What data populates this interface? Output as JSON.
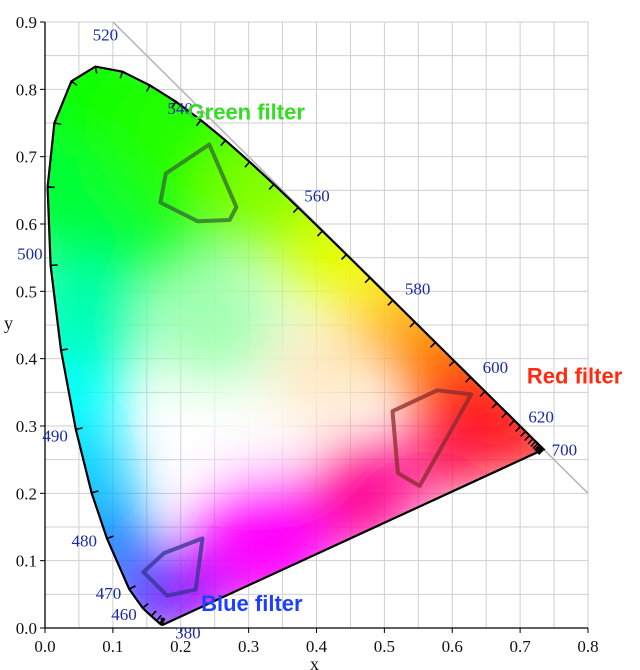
{
  "chart_data": {
    "type": "scatter",
    "xlabel": "x",
    "ylabel": "y",
    "xlim": [
      0,
      0.8
    ],
    "ylim": [
      0,
      0.9
    ],
    "xticks": [
      "0.0",
      "0.1",
      "0.2",
      "0.3",
      "0.4",
      "0.5",
      "0.6",
      "0.7",
      "0.8"
    ],
    "yticks": [
      "0.0",
      "0.1",
      "0.2",
      "0.3",
      "0.4",
      "0.5",
      "0.6",
      "0.7",
      "0.8",
      "0.9"
    ],
    "grid": true,
    "spectral_locus": [
      [
        0.1741,
        0.005
      ],
      [
        0.1738,
        0.0049
      ],
      [
        0.1733,
        0.0048
      ],
      [
        0.1726,
        0.0048
      ],
      [
        0.1714,
        0.0051
      ],
      [
        0.1689,
        0.0069
      ],
      [
        0.1644,
        0.0109
      ],
      [
        0.1566,
        0.0177
      ],
      [
        0.144,
        0.0297
      ],
      [
        0.1241,
        0.0578
      ],
      [
        0.0913,
        0.1327
      ],
      [
        0.0687,
        0.2007
      ],
      [
        0.0454,
        0.295
      ],
      [
        0.0235,
        0.4127
      ],
      [
        0.0082,
        0.5384
      ],
      [
        0.0039,
        0.6548
      ],
      [
        0.0139,
        0.7502
      ],
      [
        0.0389,
        0.812
      ],
      [
        0.0743,
        0.8338
      ],
      [
        0.1142,
        0.8262
      ],
      [
        0.1547,
        0.8059
      ],
      [
        0.1929,
        0.7816
      ],
      [
        0.2296,
        0.7543
      ],
      [
        0.2658,
        0.7243
      ],
      [
        0.3016,
        0.6923
      ],
      [
        0.3373,
        0.6589
      ],
      [
        0.3731,
        0.6245
      ],
      [
        0.4087,
        0.5896
      ],
      [
        0.4441,
        0.5547
      ],
      [
        0.4788,
        0.5202
      ],
      [
        0.5125,
        0.4866
      ],
      [
        0.5448,
        0.4544
      ],
      [
        0.5752,
        0.4242
      ],
      [
        0.6029,
        0.3965
      ],
      [
        0.627,
        0.3725
      ],
      [
        0.6482,
        0.3514
      ],
      [
        0.6658,
        0.334
      ],
      [
        0.6801,
        0.3197
      ],
      [
        0.6915,
        0.3083
      ],
      [
        0.7006,
        0.2993
      ],
      [
        0.7079,
        0.292
      ],
      [
        0.714,
        0.2859
      ],
      [
        0.719,
        0.2809
      ],
      [
        0.723,
        0.277
      ],
      [
        0.726,
        0.274
      ],
      [
        0.7283,
        0.2717
      ],
      [
        0.73,
        0.27
      ],
      [
        0.7311,
        0.2689
      ],
      [
        0.732,
        0.268
      ],
      [
        0.7327,
        0.2673
      ],
      [
        0.7334,
        0.2666
      ],
      [
        0.734,
        0.266
      ],
      [
        0.7344,
        0.2656
      ],
      [
        0.7346,
        0.2654
      ],
      [
        0.7347,
        0.2653
      ]
    ],
    "wavelength_labels": [
      {
        "label": "380",
        "x": 0.1741,
        "y": 0.005
      },
      {
        "label": "460",
        "x": 0.144,
        "y": 0.0297
      },
      {
        "label": "470",
        "x": 0.1241,
        "y": 0.0578
      },
      {
        "label": "480",
        "x": 0.0913,
        "y": 0.1327
      },
      {
        "label": "490",
        "x": 0.0454,
        "y": 0.295
      },
      {
        "label": "500",
        "x": 0.0082,
        "y": 0.5384
      },
      {
        "label": "520",
        "x": 0.0743,
        "y": 0.8338
      },
      {
        "label": "540",
        "x": 0.2296,
        "y": 0.7543
      },
      {
        "label": "560",
        "x": 0.3731,
        "y": 0.6245
      },
      {
        "label": "580",
        "x": 0.5125,
        "y": 0.4866
      },
      {
        "label": "600",
        "x": 0.627,
        "y": 0.3725
      },
      {
        "label": "620",
        "x": 0.6915,
        "y": 0.3083
      },
      {
        "label": "700",
        "x": 0.7347,
        "y": 0.2653
      }
    ],
    "filters": [
      {
        "label": "Green filter",
        "label_color": "#33dd22",
        "outline_color": "#2f6a2f",
        "outline": [
          [
            0.242,
            0.718
          ],
          [
            0.282,
            0.625
          ],
          [
            0.272,
            0.606
          ],
          [
            0.225,
            0.604
          ],
          [
            0.17,
            0.632
          ],
          [
            0.178,
            0.675
          ],
          [
            0.242,
            0.718
          ]
        ]
      },
      {
        "label": "Red filter",
        "label_color": "#ff2a10",
        "outline_color": "#8a2a2a",
        "outline": [
          [
            0.628,
            0.347
          ],
          [
            0.552,
            0.211
          ],
          [
            0.52,
            0.23
          ],
          [
            0.512,
            0.322
          ],
          [
            0.578,
            0.353
          ],
          [
            0.628,
            0.347
          ]
        ]
      },
      {
        "label": "Blue filter",
        "label_color": "#1f3fff",
        "outline_color": "#33338f",
        "outline": [
          [
            0.232,
            0.133
          ],
          [
            0.222,
            0.057
          ],
          [
            0.18,
            0.048
          ],
          [
            0.145,
            0.083
          ],
          [
            0.175,
            0.111
          ],
          [
            0.232,
            0.133
          ]
        ]
      }
    ]
  }
}
